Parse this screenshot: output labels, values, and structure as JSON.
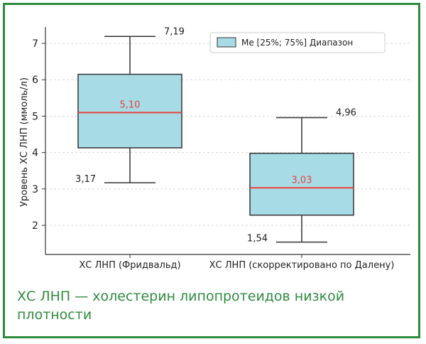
{
  "chart_data": {
    "type": "box",
    "ylabel": "Уровень ХС ЛНП (ммоль/л)",
    "ylim": [
      1.2,
      7.45
    ],
    "yticks": [
      2,
      3,
      4,
      5,
      6,
      7
    ],
    "grid": true,
    "legend": {
      "label": "Me [25%; 75%] Диапазон",
      "placement": "top-right"
    },
    "categories": [
      "ХС ЛНП (Фридвальд)",
      "ХС ЛНП (скорректировано по Далену)"
    ],
    "boxes": [
      {
        "category": "ХС ЛНП (Фридвальд)",
        "min": 3.17,
        "q1": 4.13,
        "median": 5.1,
        "q3": 6.15,
        "max": 7.19,
        "max_label": "7,19",
        "min_label": "3,17",
        "median_label": "5,10"
      },
      {
        "category": "ХС ЛНП (скорректировано по Далену)",
        "min": 1.54,
        "q1": 2.28,
        "median": 3.03,
        "q3": 3.98,
        "max": 4.96,
        "max_label": "4,96",
        "min_label": "1,54",
        "median_label": "3,03"
      }
    ],
    "colors": {
      "box_fill": "#a7dbe6",
      "median_line": "#e8423c",
      "grid": "#d9d9d9"
    }
  },
  "caption": "ХС ЛНП — холестерин липопротеидов низкой плотности",
  "colors": {
    "frame": "#2e8b3e",
    "caption": "#2e8b3e"
  }
}
